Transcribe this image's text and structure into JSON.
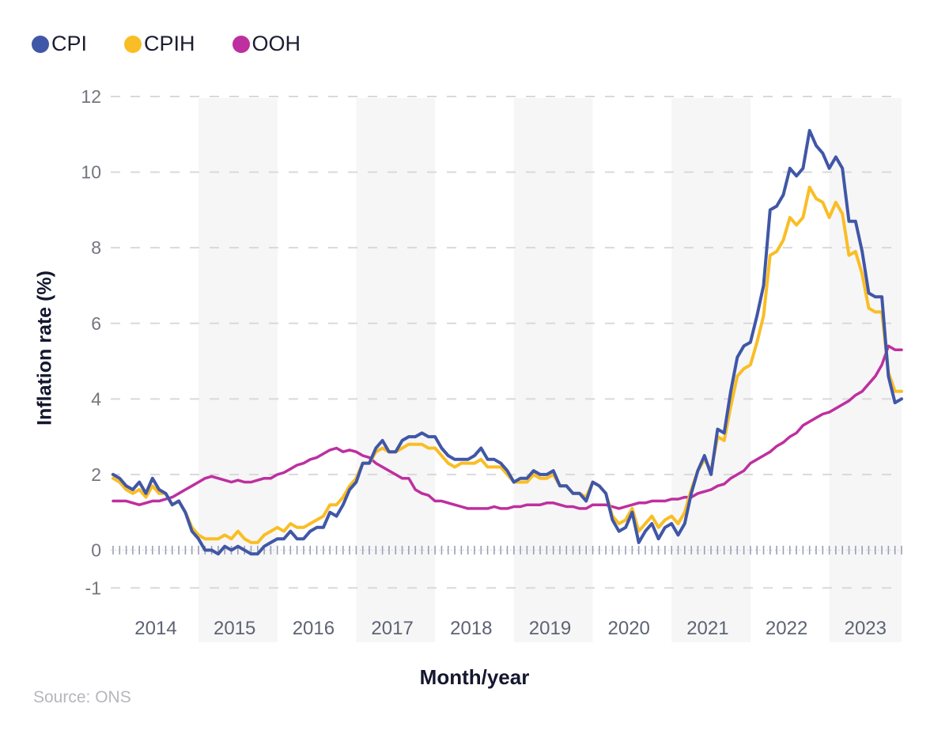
{
  "legend": {
    "items": [
      {
        "label": "CPI",
        "color": "#4057A7"
      },
      {
        "label": "CPIH",
        "color": "#F9BE25"
      },
      {
        "label": "OOH",
        "color": "#BE2F9F"
      }
    ]
  },
  "y_axis": {
    "title": "Inflation rate (%)"
  },
  "x_axis": {
    "title": "Month/year"
  },
  "source": "Source: ONS",
  "chart_data": {
    "type": "line",
    "title": "",
    "xlabel": "Month/year",
    "ylabel": "Inflation rate (%)",
    "frequency": "monthly",
    "x_start": "Dec 2013",
    "x_end": "Dec 2023",
    "ylim": [
      -1,
      12
    ],
    "y_ticks": [
      12,
      10,
      8,
      6,
      4,
      2,
      0,
      -1
    ],
    "grid_values": [
      12,
      10,
      8,
      6,
      4,
      2,
      -1
    ],
    "x_years": [
      2014,
      2015,
      2016,
      2017,
      2018,
      2019,
      2020,
      2021,
      2022,
      2023
    ],
    "banded_years": [
      2015,
      2017,
      2019,
      2021,
      2023
    ],
    "band_color": "#f6f6f7",
    "gridline_color": "#d9d9d9",
    "zero_line_color": "#ccced8",
    "month_tick_color": "#9aa0b4",
    "y_tick_label_color": "#72767e",
    "year_label_color": "#5e6373",
    "legend_position": "top-left",
    "series": [
      {
        "name": "OOH",
        "color": "#BE2F9F",
        "width": 3.5,
        "values": [
          1.3,
          1.3,
          1.3,
          1.25,
          1.2,
          1.25,
          1.3,
          1.3,
          1.35,
          1.4,
          1.5,
          1.6,
          1.7,
          1.8,
          1.9,
          1.95,
          1.9,
          1.85,
          1.8,
          1.85,
          1.8,
          1.8,
          1.85,
          1.9,
          1.9,
          2.0,
          2.05,
          2.15,
          2.25,
          2.3,
          2.4,
          2.45,
          2.55,
          2.65,
          2.7,
          2.6,
          2.65,
          2.6,
          2.5,
          2.45,
          2.3,
          2.2,
          2.1,
          2.0,
          1.9,
          1.9,
          1.6,
          1.5,
          1.45,
          1.3,
          1.3,
          1.25,
          1.2,
          1.15,
          1.1,
          1.1,
          1.1,
          1.1,
          1.15,
          1.1,
          1.1,
          1.15,
          1.15,
          1.2,
          1.2,
          1.2,
          1.25,
          1.25,
          1.2,
          1.15,
          1.15,
          1.1,
          1.1,
          1.2,
          1.2,
          1.2,
          1.15,
          1.1,
          1.15,
          1.2,
          1.25,
          1.25,
          1.3,
          1.3,
          1.3,
          1.35,
          1.35,
          1.4,
          1.4,
          1.5,
          1.55,
          1.6,
          1.7,
          1.75,
          1.9,
          2.0,
          2.1,
          2.3,
          2.4,
          2.5,
          2.6,
          2.75,
          2.85,
          3.0,
          3.1,
          3.3,
          3.4,
          3.5,
          3.6,
          3.65,
          3.75,
          3.85,
          3.95,
          4.1,
          4.2,
          4.4,
          4.6,
          4.9,
          5.4,
          5.3,
          5.3
        ]
      },
      {
        "name": "CPIH",
        "color": "#F9BE25",
        "width": 4,
        "values": [
          1.9,
          1.8,
          1.6,
          1.5,
          1.6,
          1.4,
          1.7,
          1.5,
          1.5,
          1.2,
          1.3,
          1.0,
          0.6,
          0.4,
          0.3,
          0.3,
          0.3,
          0.4,
          0.3,
          0.5,
          0.3,
          0.2,
          0.2,
          0.4,
          0.5,
          0.6,
          0.5,
          0.7,
          0.6,
          0.6,
          0.7,
          0.8,
          0.9,
          1.2,
          1.2,
          1.4,
          1.7,
          1.9,
          2.3,
          2.3,
          2.6,
          2.7,
          2.6,
          2.6,
          2.7,
          2.8,
          2.8,
          2.8,
          2.7,
          2.7,
          2.5,
          2.3,
          2.2,
          2.3,
          2.3,
          2.3,
          2.4,
          2.2,
          2.2,
          2.2,
          2.0,
          1.8,
          1.8,
          1.8,
          2.0,
          1.9,
          1.9,
          2.0,
          1.7,
          1.7,
          1.5,
          1.5,
          1.4,
          1.8,
          1.7,
          1.5,
          0.9,
          0.7,
          0.8,
          1.1,
          0.5,
          0.7,
          0.9,
          0.6,
          0.8,
          0.9,
          0.7,
          1.0,
          1.6,
          2.1,
          2.4,
          2.1,
          3.0,
          2.9,
          3.8,
          4.6,
          4.8,
          4.9,
          5.5,
          6.2,
          7.8,
          7.9,
          8.2,
          8.8,
          8.6,
          8.8,
          9.6,
          9.3,
          9.2,
          8.8,
          9.2,
          8.9,
          7.8,
          7.9,
          7.3,
          6.4,
          6.3,
          6.3,
          4.7,
          4.2,
          4.2
        ]
      },
      {
        "name": "CPI",
        "color": "#4057A7",
        "width": 4,
        "values": [
          2.0,
          1.9,
          1.7,
          1.6,
          1.8,
          1.5,
          1.9,
          1.6,
          1.5,
          1.2,
          1.3,
          1.0,
          0.5,
          0.3,
          0.0,
          0.0,
          -0.1,
          0.1,
          0.0,
          0.1,
          0.0,
          -0.1,
          -0.1,
          0.1,
          0.2,
          0.3,
          0.3,
          0.5,
          0.3,
          0.3,
          0.5,
          0.6,
          0.6,
          1.0,
          0.9,
          1.2,
          1.6,
          1.8,
          2.3,
          2.3,
          2.7,
          2.9,
          2.6,
          2.6,
          2.9,
          3.0,
          3.0,
          3.1,
          3.0,
          3.0,
          2.7,
          2.5,
          2.4,
          2.4,
          2.4,
          2.5,
          2.7,
          2.4,
          2.4,
          2.3,
          2.1,
          1.8,
          1.9,
          1.9,
          2.1,
          2.0,
          2.0,
          2.1,
          1.7,
          1.7,
          1.5,
          1.5,
          1.3,
          1.8,
          1.7,
          1.5,
          0.8,
          0.5,
          0.6,
          1.0,
          0.2,
          0.5,
          0.7,
          0.3,
          0.6,
          0.7,
          0.4,
          0.7,
          1.5,
          2.1,
          2.5,
          2.0,
          3.2,
          3.1,
          4.2,
          5.1,
          5.4,
          5.5,
          6.2,
          7.0,
          9.0,
          9.1,
          9.4,
          10.1,
          9.9,
          10.1,
          11.1,
          10.7,
          10.5,
          10.1,
          10.4,
          10.1,
          8.7,
          8.7,
          7.9,
          6.8,
          6.7,
          6.7,
          4.6,
          3.9,
          4.0
        ]
      }
    ]
  }
}
